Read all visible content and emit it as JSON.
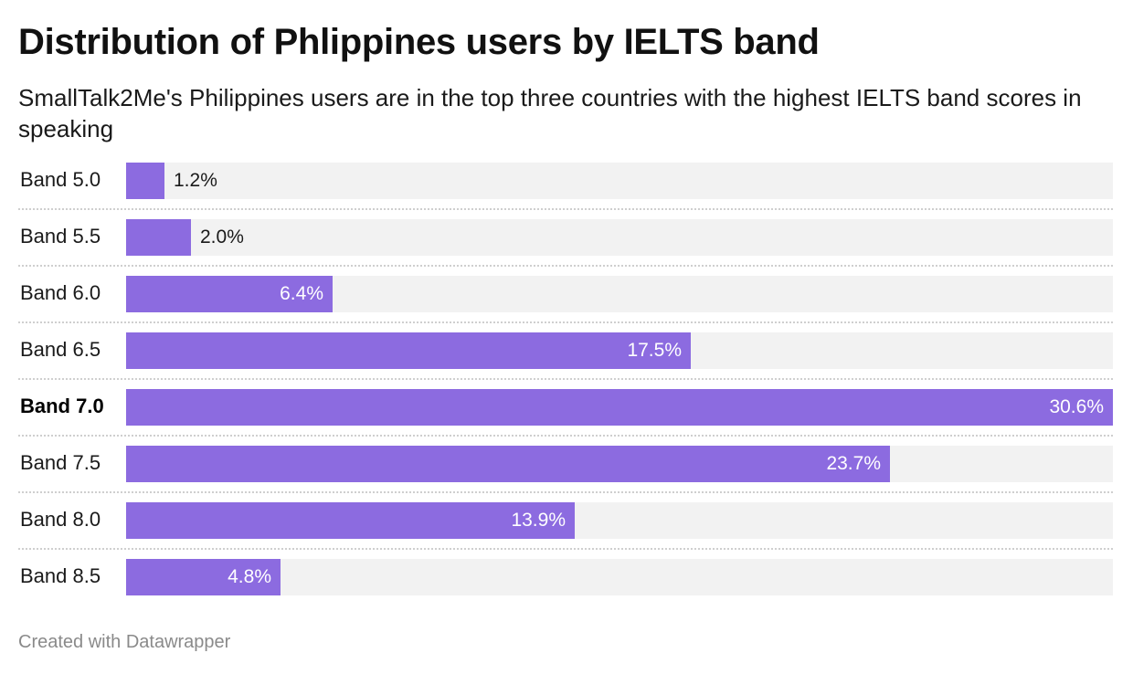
{
  "title": "Distribution of Phlippines users by IELTS band",
  "subtitle": "SmallTalk2Me's Philippines users are in the top three countries with the highest IELTS band scores in speaking",
  "footer": "Created with Datawrapper",
  "colors": {
    "bar": "#8c6be0",
    "track": "#f2f2f2",
    "separator": "#cfcfcf"
  },
  "chart_data": {
    "type": "bar",
    "orientation": "horizontal",
    "title": "Distribution of Phlippines users by IELTS band",
    "subtitle": "SmallTalk2Me's Philippines users are in the top three countries with the highest IELTS band scores in speaking",
    "categories": [
      "Band 5.0",
      "Band 5.5",
      "Band 6.0",
      "Band 6.5",
      "Band 7.0",
      "Band 7.5",
      "Band 8.0",
      "Band 8.5"
    ],
    "values": [
      1.2,
      2.0,
      6.4,
      17.5,
      30.6,
      23.7,
      13.9,
      4.8
    ],
    "value_labels": [
      "1.2%",
      "2.0%",
      "6.4%",
      "17.5%",
      "30.6%",
      "23.7%",
      "13.9%",
      "4.8%"
    ],
    "highlighted_category": "Band 7.0",
    "unit": "%",
    "xlim": [
      0,
      30.6
    ],
    "grid": false,
    "legend": "none"
  }
}
